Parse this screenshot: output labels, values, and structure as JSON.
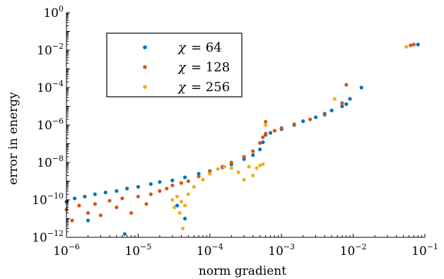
{
  "chart_data": {
    "type": "scatter",
    "xlabel": "norm gradient",
    "ylabel": "error in energy",
    "x_scale": "log",
    "y_scale": "log",
    "xlim": [
      1e-06,
      0.1
    ],
    "ylim": [
      1e-12,
      1
    ],
    "x_ticks": [
      {
        "base": "10",
        "exp": "−6"
      },
      {
        "base": "10",
        "exp": "−5"
      },
      {
        "base": "10",
        "exp": "−4"
      },
      {
        "base": "10",
        "exp": "−3"
      },
      {
        "base": "10",
        "exp": "−2"
      },
      {
        "base": "10",
        "exp": "−1"
      }
    ],
    "y_ticks": [
      {
        "base": "10",
        "exp": "−12"
      },
      {
        "base": "10",
        "exp": "−10"
      },
      {
        "base": "10",
        "exp": "−8"
      },
      {
        "base": "10",
        "exp": "−6"
      },
      {
        "base": "10",
        "exp": "−4"
      },
      {
        "base": "10",
        "exp": "−2"
      },
      {
        "base": "10",
        "exp": "0"
      }
    ],
    "grid": false,
    "legend_position": "top-left",
    "series": [
      {
        "name": "χ = 64",
        "legend_symbol": "χ",
        "legend_value": "= 64",
        "color": "#0072BD",
        "points": [
          [
            1e-06,
            8e-11
          ],
          [
            1.3e-06,
            1.2e-10
          ],
          [
            1.8e-06,
            1.5e-10
          ],
          [
            2.5e-06,
            2e-10
          ],
          [
            3.5e-06,
            2.5e-10
          ],
          [
            5e-06,
            3e-10
          ],
          [
            7e-06,
            4e-10
          ],
          [
            1e-05,
            5e-10
          ],
          [
            1.5e-05,
            7e-10
          ],
          [
            2e-05,
            9e-10
          ],
          [
            3e-05,
            1.1e-09
          ],
          [
            4.5e-05,
            1.6e-09
          ],
          [
            7e-05,
            2.5e-09
          ],
          [
            0.0001,
            3.5e-09
          ],
          [
            0.00015,
            5.5e-09
          ],
          [
            0.0002,
            8e-09
          ],
          [
            0.0003,
            1.5e-08
          ],
          [
            0.0004,
            2.5e-08
          ],
          [
            0.0005,
            5e-08
          ],
          [
            0.00055,
            1.2e-07
          ],
          [
            0.0006,
            3e-07
          ],
          [
            0.0007,
            3.8e-07
          ],
          [
            0.001,
            6e-07
          ],
          [
            0.0015,
            1e-06
          ],
          [
            0.002,
            1.6e-06
          ],
          [
            0.003,
            2.6e-06
          ],
          [
            0.004,
            4e-06
          ],
          [
            0.005,
            6e-06
          ],
          [
            0.007,
            1e-05
          ],
          [
            0.008,
            1.3e-05
          ],
          [
            0.009,
            2.5e-05
          ],
          [
            0.013,
            0.0001
          ],
          [
            0.08,
            0.02
          ],
          [
            3.5e-05,
            5e-11
          ],
          [
            4.5e-05,
            1e-11
          ],
          [
            6.5e-06,
            1.5e-12
          ],
          [
            2e-06,
            8e-12
          ]
        ]
      },
      {
        "name": "χ = 128",
        "legend_symbol": "χ",
        "legend_value": "= 128",
        "color": "#D95319",
        "points": [
          [
            1e-06,
            3e-11
          ],
          [
            1.2e-06,
            8e-12
          ],
          [
            1.5e-06,
            5e-11
          ],
          [
            2e-06,
            2e-11
          ],
          [
            2.5e-06,
            6e-11
          ],
          [
            3e-06,
            1.5e-11
          ],
          [
            4e-06,
            9e-11
          ],
          [
            5e-06,
            4e-11
          ],
          [
            6e-06,
            1.2e-10
          ],
          [
            8e-06,
            2e-11
          ],
          [
            1e-05,
            1.5e-10
          ],
          [
            1.3e-05,
            6e-11
          ],
          [
            1.5e-05,
            2e-10
          ],
          [
            2e-05,
            3e-10
          ],
          [
            2.5e-05,
            4e-10
          ],
          [
            3e-05,
            6e-10
          ],
          [
            4e-05,
            8e-10
          ],
          [
            5e-05,
            1e-09
          ],
          [
            7e-05,
            1.8e-09
          ],
          [
            0.0001,
            3.2e-09
          ],
          [
            0.00015,
            6e-09
          ],
          [
            0.0002,
            1e-08
          ],
          [
            0.0003,
            2e-08
          ],
          [
            0.0004,
            4e-08
          ],
          [
            0.0005,
            1.1e-07
          ],
          [
            0.00055,
            2.2e-07
          ],
          [
            0.0006,
            3.5e-07
          ],
          [
            0.0008,
            5e-07
          ],
          [
            0.001,
            7e-07
          ],
          [
            0.0015,
            1.1e-06
          ],
          [
            0.0025,
            2e-06
          ],
          [
            0.004,
            3.5e-06
          ],
          [
            0.0006,
            1.5e-06
          ],
          [
            0.007,
            1.5e-05
          ],
          [
            0.008,
            0.00014
          ],
          [
            0.063,
            0.018
          ],
          [
            0.07,
            0.02
          ]
        ]
      },
      {
        "name": "χ = 256",
        "legend_symbol": "χ",
        "legend_value": "= 256",
        "color": "#EDB120",
        "points": [
          [
            3e-05,
            1e-10
          ],
          [
            3.2e-05,
            4e-11
          ],
          [
            3.5e-05,
            1.5e-10
          ],
          [
            3.8e-05,
            2e-11
          ],
          [
            4e-05,
            8e-11
          ],
          [
            4.2e-05,
            3e-12
          ],
          [
            4.5e-05,
            5e-11
          ],
          [
            5e-05,
            2e-10
          ],
          [
            6e-05,
            5e-10
          ],
          [
            8e-05,
            1.2e-09
          ],
          [
            0.0001,
            2.5e-09
          ],
          [
            0.00013,
            4.5e-09
          ],
          [
            0.00016,
            6e-09
          ],
          [
            0.0002,
            5e-09
          ],
          [
            0.00025,
            3e-09
          ],
          [
            0.0003,
            1.2e-09
          ],
          [
            0.00035,
            6e-09
          ],
          [
            0.0004,
            2e-09
          ],
          [
            0.00045,
            5e-09
          ],
          [
            0.0005,
            7e-09
          ],
          [
            0.00055,
            8e-09
          ],
          [
            0.0006,
            1e-06
          ],
          [
            0.0055,
            2.5e-05
          ],
          [
            0.055,
            0.015
          ]
        ]
      }
    ]
  }
}
